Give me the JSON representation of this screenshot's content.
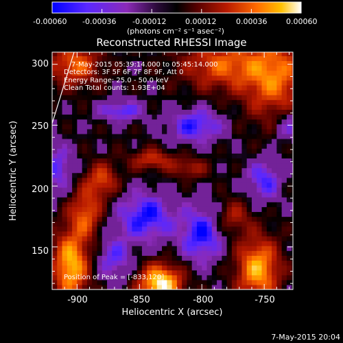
{
  "colorbar": {
    "ticks": [
      "-0.00060",
      "-0.00036",
      "-0.00012",
      "0.00012",
      "0.00036",
      "0.00060"
    ],
    "unit_label": "(photons cm⁻² s⁻¹ asec⁻²)",
    "range": [
      -0.0006,
      0.0006
    ],
    "colors": [
      "#0000ff",
      "#5a28ff",
      "#8b2ab8",
      "#2b0a3a",
      "#000000",
      "#550000",
      "#b81a00",
      "#ff6a00",
      "#ffc000",
      "#ffffff"
    ]
  },
  "annotations": {
    "time_range": "7-May-2015 05:39:14.000 to 05:45:14.000",
    "detectors": "Detectors: 3F 5F 6F 7F 8F 9F, Att 0",
    "energy": "Energy Range: 25.0 - 50.0 keV",
    "clean": "Clean     Total counts: 1.93E+04",
    "peak": "Position of Peak = [-833,120]"
  },
  "footer": "7-May-2015 20:04",
  "chart_data": {
    "type": "heatmap",
    "title": "Reconstructed RHESSI Image",
    "xlabel": "Heliocentric X (arcsec)",
    "ylabel": "Heliocentric Y (arcsec)",
    "xlim": [
      -920,
      -727
    ],
    "ylim": [
      115,
      310
    ],
    "x_ticks": [
      "-900",
      "-850",
      "-800",
      "-750"
    ],
    "y_ticks": [
      "150",
      "200",
      "250",
      "300"
    ],
    "peak": [
      -833,
      120
    ],
    "blobs": [
      {
        "x": -833,
        "y": 120,
        "sx": 12,
        "sy": 11,
        "a": 1.0
      },
      {
        "x": -905,
        "y": 135,
        "sx": 10,
        "sy": 20,
        "a": 0.85
      },
      {
        "x": -893,
        "y": 178,
        "sx": 9,
        "sy": 14,
        "a": 0.55
      },
      {
        "x": -880,
        "y": 205,
        "sx": 9,
        "sy": 10,
        "a": 0.5
      },
      {
        "x": -755,
        "y": 132,
        "sx": 12,
        "sy": 18,
        "a": 0.8
      },
      {
        "x": -775,
        "y": 175,
        "sx": 10,
        "sy": 10,
        "a": 0.35
      },
      {
        "x": -742,
        "y": 290,
        "sx": 18,
        "sy": 24,
        "a": 0.65
      },
      {
        "x": -785,
        "y": 300,
        "sx": 22,
        "sy": 14,
        "a": 0.55
      },
      {
        "x": -902,
        "y": 300,
        "sx": 14,
        "sy": 12,
        "a": 0.6
      },
      {
        "x": -840,
        "y": 222,
        "sx": 12,
        "sy": 6,
        "a": 0.45
      },
      {
        "x": -810,
        "y": 215,
        "sx": 10,
        "sy": 6,
        "a": 0.35
      },
      {
        "x": -865,
        "y": 262,
        "sx": 12,
        "sy": 6,
        "a": -0.45
      },
      {
        "x": -805,
        "y": 250,
        "sx": 15,
        "sy": 10,
        "a": -0.5
      },
      {
        "x": -845,
        "y": 175,
        "sx": 16,
        "sy": 14,
        "a": -0.55
      },
      {
        "x": -800,
        "y": 160,
        "sx": 12,
        "sy": 16,
        "a": -0.55
      },
      {
        "x": -915,
        "y": 215,
        "sx": 8,
        "sy": 14,
        "a": -0.4
      },
      {
        "x": -750,
        "y": 205,
        "sx": 10,
        "sy": 12,
        "a": -0.45
      },
      {
        "x": -870,
        "y": 140,
        "sx": 10,
        "sy": 12,
        "a": -0.4
      },
      {
        "x": -730,
        "y": 250,
        "sx": 8,
        "sy": 10,
        "a": -0.35
      }
    ]
  }
}
